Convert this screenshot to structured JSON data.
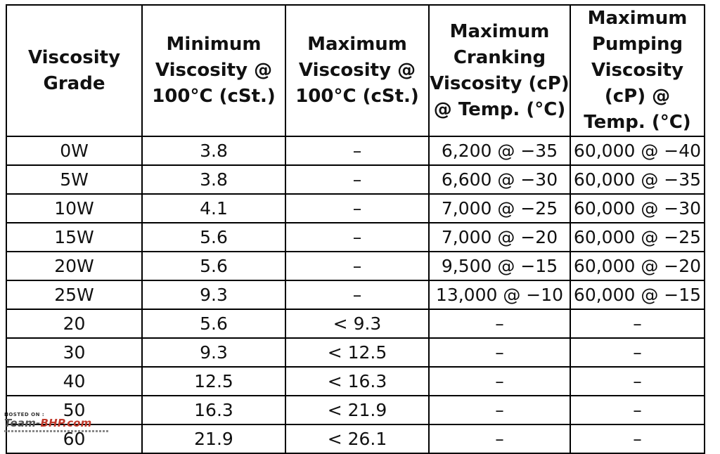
{
  "table": {
    "headers": [
      "Viscosity Grade",
      "Minimum Viscosity @ 100°C (cSt.)",
      "Maximum Viscosity @ 100°C (cSt.)",
      "Maximum Cranking Viscosity (cP) @ Temp. (°C)",
      "Maximum Pumping Viscosity (cP) @ Temp. (°C)"
    ],
    "rows": [
      [
        "0W",
        "3.8",
        "–",
        "6,200 @ −35",
        "60,000 @ −40"
      ],
      [
        "5W",
        "3.8",
        "–",
        "6,600 @ −30",
        "60,000 @ −35"
      ],
      [
        "10W",
        "4.1",
        "–",
        "7,000 @ −25",
        "60,000 @ −30"
      ],
      [
        "15W",
        "5.6",
        "–",
        "7,000 @ −20",
        "60,000 @ −25"
      ],
      [
        "20W",
        "5.6",
        "–",
        "9,500 @ −15",
        "60,000 @ −20"
      ],
      [
        "25W",
        "9.3",
        "–",
        "13,000 @ −10",
        "60,000 @ −15"
      ],
      [
        "20",
        "5.6",
        "< 9.3",
        "–",
        "–"
      ],
      [
        "30",
        "9.3",
        "< 12.5",
        "–",
        "–"
      ],
      [
        "40",
        "12.5",
        "< 16.3",
        "–",
        "–"
      ],
      [
        "50",
        "16.3",
        "< 21.9",
        "–",
        "–"
      ],
      [
        "60",
        "21.9",
        "< 26.1",
        "–",
        "–"
      ]
    ]
  },
  "watermark": {
    "hosted_label": "HOSTED ON :",
    "brand_prefix": "Team-",
    "brand_suffix": "BHP.com"
  }
}
